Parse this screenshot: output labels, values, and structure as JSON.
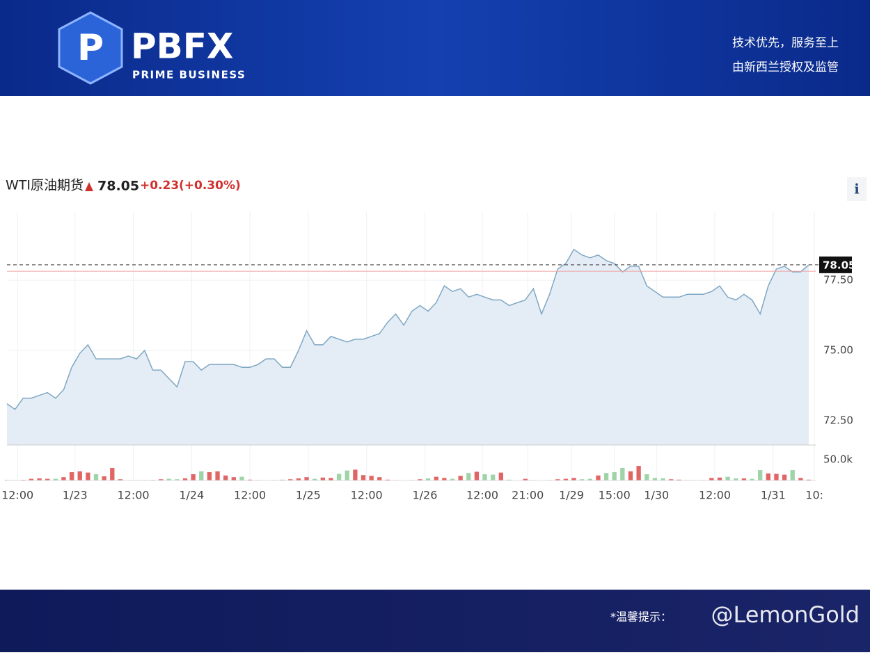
{
  "header": {
    "logo": "PBFX",
    "logo_sub": "PRIME BUSINESS",
    "slogan": "技术优先，服务至上",
    "regulation": "由新西兰授权及监管"
  },
  "footer": {
    "notice": "*温馨提示：",
    "watermark": "@LemonGold"
  },
  "info_button": "i",
  "chart_data": {
    "type": "line",
    "title": "WTI原油期货",
    "price": 78.05,
    "change": "+0.23",
    "change_pct": "(+0.30%)",
    "prev_close": 77.82,
    "line_color": "#7fa7c3",
    "area_color": "#e4edf5",
    "up_color": "#e06666",
    "down_color": "#9fd4a8",
    "series": [
      {
        "values": [
          73.1,
          72.9,
          73.3,
          73.3,
          73.4,
          73.5,
          73.3,
          73.6,
          74.4,
          74.9,
          75.2,
          74.7,
          74.7,
          74.7,
          74.7,
          74.8,
          74.7,
          75.0,
          74.3,
          74.3,
          74.0,
          73.7,
          74.6,
          74.6,
          74.3,
          74.5,
          74.5,
          74.5,
          74.5,
          74.4,
          74.4,
          74.5,
          74.7,
          74.7,
          74.4,
          74.4,
          75.0,
          75.7,
          75.2,
          75.2,
          75.5,
          75.4,
          75.3,
          75.4,
          75.4,
          75.5,
          75.6,
          76.0,
          76.3,
          75.9,
          76.4,
          76.6,
          76.4,
          76.7,
          77.3,
          77.1,
          77.2,
          76.9,
          77.0,
          76.9,
          76.8,
          76.8,
          76.6,
          76.7,
          76.8,
          77.2,
          76.3,
          77.0,
          77.9,
          78.1,
          78.6,
          78.4,
          78.3,
          78.4,
          78.2,
          78.1,
          77.8,
          78.0,
          78.0,
          77.3,
          77.1,
          76.9,
          76.9,
          76.9,
          77.0,
          77.0,
          77.0,
          77.1,
          77.3,
          76.9,
          76.8,
          77.0,
          76.8,
          76.3,
          77.3,
          77.9,
          78.0,
          77.8,
          77.8,
          78.05
        ]
      },
      {
        "axis": "y2",
        "values": [
          1000,
          1000,
          1500,
          4000,
          5000,
          4000,
          4000,
          8000,
          20000,
          22000,
          19000,
          15000,
          10000,
          30000,
          3000,
          500,
          1000,
          1000,
          1500,
          3000,
          4000,
          3000,
          5000,
          15000,
          22000,
          20000,
          22000,
          12000,
          8000,
          9000,
          2000,
          1000,
          500,
          1000,
          2000,
          3000,
          5000,
          8000,
          4000,
          7000,
          6000,
          16000,
          24000,
          26000,
          13000,
          11000,
          8000,
          2000,
          1000,
          500,
          1000,
          3000,
          5000,
          9000,
          6000,
          4000,
          11000,
          18000,
          21000,
          15000,
          14000,
          19000,
          2000,
          500,
          4000,
          1000,
          500,
          1000,
          3000,
          4000,
          6000,
          3000,
          4000,
          12000,
          18000,
          20000,
          30000,
          22000,
          35000,
          15000,
          6000,
          5000,
          3000,
          2000,
          1000,
          500,
          1000,
          6000,
          7000,
          9000,
          5000,
          5000,
          4000,
          25000,
          17000,
          16000,
          14000,
          25000,
          6000,
          2000
        ]
      }
    ],
    "xlim": [
      0,
      99
    ],
    "xticks": [
      {
        "value": 1.3,
        "label": "12:00"
      },
      {
        "value": 8.4,
        "label": "1/23"
      },
      {
        "value": 15.6,
        "label": "12:00"
      },
      {
        "value": 22.8,
        "label": "1/24"
      },
      {
        "value": 30,
        "label": "12:00"
      },
      {
        "value": 37.2,
        "label": "1/25"
      },
      {
        "value": 44.4,
        "label": "12:00"
      },
      {
        "value": 51.6,
        "label": "1/26"
      },
      {
        "value": 58.7,
        "label": "12:00"
      },
      {
        "value": 64.3,
        "label": "21:00"
      },
      {
        "value": 69.7,
        "label": "1/29"
      },
      {
        "value": 75,
        "label": "15:00"
      },
      {
        "value": 80.2,
        "label": "1/30"
      },
      {
        "value": 87.4,
        "label": "12:00"
      },
      {
        "value": 94.6,
        "label": "1/31"
      },
      {
        "value": 99.7,
        "label": "10:"
      }
    ],
    "ylim": [
      71.63,
      79.93
    ],
    "yticks": [
      {
        "value": 72.5,
        "label": "72.50"
      },
      {
        "value": 75,
        "label": "75.00"
      },
      {
        "value": 77.5,
        "label": "77.50"
      }
    ],
    "y2lim": [
      0,
      82000
    ],
    "y2ticks": [
      {
        "value": 50000,
        "label": "50.0k"
      }
    ]
  }
}
